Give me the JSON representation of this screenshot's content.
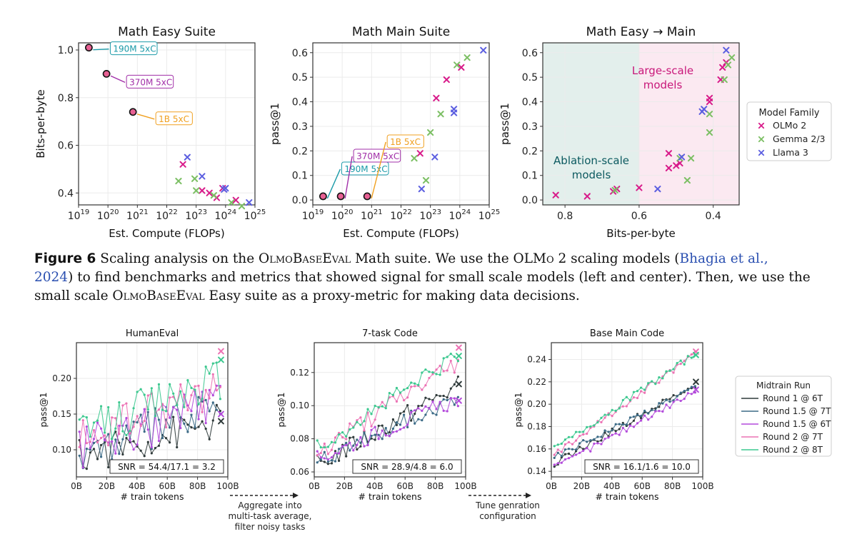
{
  "colors": {
    "olmo": "#d81b8a",
    "gemma": "#7cbf64",
    "llama": "#5b5ee0",
    "ann_190": "#1a9aa8",
    "ann_370": "#a12fa8",
    "ann_1b": "#f0a020",
    "ablation_text": "#0c5a60",
    "large_text": "#c8187a",
    "run_r1_6t": "#2f3a3a",
    "run_r15_7t": "#3b6a86",
    "run_r15_6t": "#b34adb",
    "run_r2_7t": "#ec72b4",
    "run_r2_8t": "#3cc88f"
  },
  "top_legend": {
    "title": "Model Family",
    "items": [
      "OLMo 2",
      "Gemma 2/3",
      "Llama 3"
    ]
  },
  "bottom_legend": {
    "title": "Midtrain Run",
    "items": [
      "Round 1 @ 6T",
      "Round 1.5 @ 7T",
      "Round 1.5 @ 6T",
      "Round 2 @ 7T",
      "Round 2 @ 8T"
    ]
  },
  "caption": {
    "label": "Figure 6",
    "t1": " Scaling analysis on the ",
    "sc1": "OlmoBaseEval",
    "t2": " Math suite. We use the OL",
    "sc2": "Mo",
    "t3": " 2 scaling models (",
    "cite_a": "Bhagia et al.,",
    "cite_b": "2024",
    "t4": ") to find benchmarks and metrics that showed signal for small scale models (left and center). Then, we use the small scale ",
    "sc3": "OlmoBaseEval",
    "t5": " Easy suite as a proxy-metric for making data decisions."
  },
  "arrows": {
    "a1": [
      "Aggregate into",
      "multi-task average,",
      "filter noisy tasks"
    ],
    "a2": [
      "Tune genration",
      "configuration"
    ]
  },
  "chart_data": [
    {
      "id": "math_easy",
      "type": "scatter",
      "title": "Math Easy Suite",
      "xlabel": "Est. Compute (FLOPs)",
      "ylabel": "Bits-per-byte",
      "xscale": "log",
      "xlim_exp": [
        19,
        25
      ],
      "xticks_exp": [
        19,
        20,
        21,
        22,
        23,
        24,
        25
      ],
      "ylim": [
        0.35,
        1.03
      ],
      "yticks": [
        0.4,
        0.6,
        0.8,
        1.0
      ],
      "yticklabels": [
        "0.4",
        "0.6",
        "0.8",
        "1.0"
      ],
      "circles": [
        {
          "x_exp": 19.35,
          "y": 1.01,
          "label": "190M 5xC",
          "color_key": "ann_190"
        },
        {
          "x_exp": 19.95,
          "y": 0.9,
          "label": "370M 5xC",
          "color_key": "ann_370"
        },
        {
          "x_exp": 20.85,
          "y": 0.74,
          "label": "1B 5xC",
          "color_key": "ann_1b"
        }
      ],
      "series": [
        {
          "name": "OLMo 2",
          "color_key": "olmo",
          "points": [
            [
              22.55,
              0.52
            ],
            [
              23.2,
              0.41
            ],
            [
              23.45,
              0.4
            ],
            [
              23.7,
              0.38
            ],
            [
              24.35,
              0.37
            ],
            [
              23.9,
              0.42
            ]
          ]
        },
        {
          "name": "Gemma 2/3",
          "color_key": "gemma",
          "points": [
            [
              22.4,
              0.45
            ],
            [
              22.95,
              0.46
            ],
            [
              23.0,
              0.41
            ],
            [
              23.6,
              0.39
            ],
            [
              24.2,
              0.36
            ],
            [
              24.55,
              0.345
            ]
          ]
        },
        {
          "name": "Llama 3",
          "color_key": "llama",
          "points": [
            [
              22.7,
              0.55
            ],
            [
              23.2,
              0.47
            ],
            [
              24.0,
              0.42
            ],
            [
              24.8,
              0.36
            ],
            [
              23.95,
              0.415
            ]
          ]
        }
      ]
    },
    {
      "id": "math_main",
      "type": "scatter",
      "title": "Math Main Suite",
      "xlabel": "Est. Compute (FLOPs)",
      "ylabel": "pass@1",
      "xscale": "log",
      "xlim_exp": [
        19,
        25
      ],
      "xticks_exp": [
        19,
        20,
        21,
        22,
        23,
        24,
        25
      ],
      "ylim": [
        -0.02,
        0.64
      ],
      "yticks": [
        0.0,
        0.1,
        0.2,
        0.3,
        0.4,
        0.5,
        0.6
      ],
      "yticklabels": [
        "0.0",
        "0.1",
        "0.2",
        "0.3",
        "0.4",
        "0.5",
        "0.6"
      ],
      "circles": [
        {
          "x_exp": 19.35,
          "y": 0.015,
          "label": "190M 5xC",
          "color_key": "ann_190"
        },
        {
          "x_exp": 19.95,
          "y": 0.015,
          "label": "370M 5xC",
          "color_key": "ann_370"
        },
        {
          "x_exp": 20.85,
          "y": 0.015,
          "label": "1B 5xC",
          "color_key": "ann_1b"
        }
      ],
      "series": [
        {
          "name": "OLMo 2",
          "color_key": "olmo",
          "points": [
            [
              22.65,
              0.19
            ],
            [
              23.2,
              0.415
            ],
            [
              23.55,
              0.49
            ],
            [
              24.05,
              0.54
            ]
          ]
        },
        {
          "name": "Gemma 2/3",
          "color_key": "gemma",
          "points": [
            [
              22.45,
              0.17
            ],
            [
              22.85,
              0.08
            ],
            [
              23.0,
              0.275
            ],
            [
              23.35,
              0.35
            ],
            [
              23.9,
              0.55
            ],
            [
              24.25,
              0.58
            ]
          ]
        },
        {
          "name": "Llama 3",
          "color_key": "llama",
          "points": [
            [
              22.7,
              0.045
            ],
            [
              23.15,
              0.175
            ],
            [
              23.8,
              0.37
            ],
            [
              23.8,
              0.355
            ],
            [
              24.8,
              0.61
            ]
          ]
        }
      ]
    },
    {
      "id": "math_easy_main",
      "type": "scatter",
      "title": "Math Easy → Main",
      "xlabel": "Bits-per-byte",
      "ylabel": "pass@1",
      "xlim": [
        0.86,
        0.33
      ],
      "xticks": [
        0.8,
        0.6,
        0.4
      ],
      "xticklabels": [
        "0.8",
        "0.6",
        "0.4"
      ],
      "ylim": [
        -0.02,
        0.64
      ],
      "yticks": [
        0.0,
        0.1,
        0.2,
        0.3,
        0.4,
        0.5,
        0.6
      ],
      "yticklabels": [
        "0.0",
        "0.1",
        "0.2",
        "0.3",
        "0.4",
        "0.5",
        "0.6"
      ],
      "region_split_x": 0.6,
      "ablation_label": [
        "Ablation-scale",
        "models"
      ],
      "large_label": [
        "Large-scale",
        "models"
      ],
      "series": [
        {
          "name": "OLMo 2",
          "color_key": "olmo",
          "points": [
            [
              0.825,
              0.02
            ],
            [
              0.74,
              0.015
            ],
            [
              0.67,
              0.035
            ],
            [
              0.66,
              0.045
            ],
            [
              0.6,
              0.05
            ],
            [
              0.52,
              0.13
            ],
            [
              0.52,
              0.19
            ],
            [
              0.5,
              0.14
            ],
            [
              0.49,
              0.15
            ],
            [
              0.41,
              0.4
            ],
            [
              0.41,
              0.415
            ],
            [
              0.38,
              0.49
            ],
            [
              0.375,
              0.54
            ],
            [
              0.365,
              0.56
            ]
          ]
        },
        {
          "name": "Gemma 2/3",
          "color_key": "gemma",
          "points": [
            [
              0.665,
              0.04
            ],
            [
              0.47,
              0.08
            ],
            [
              0.46,
              0.17
            ],
            [
              0.49,
              0.17
            ],
            [
              0.41,
              0.35
            ],
            [
              0.41,
              0.275
            ],
            [
              0.37,
              0.49
            ],
            [
              0.36,
              0.55
            ],
            [
              0.35,
              0.58
            ]
          ]
        },
        {
          "name": "Llama 3",
          "color_key": "llama",
          "points": [
            [
              0.55,
              0.045
            ],
            [
              0.485,
              0.175
            ],
            [
              0.43,
              0.36
            ],
            [
              0.425,
              0.37
            ],
            [
              0.365,
              0.61
            ]
          ]
        }
      ]
    },
    {
      "id": "humaneval",
      "type": "line",
      "title": "HumanEval",
      "xlabel": "# train tokens",
      "ylabel": "pass@1",
      "xlim": [
        0,
        100
      ],
      "xticks": [
        0,
        20,
        40,
        60,
        80,
        100
      ],
      "xticklabels": [
        "0B",
        "20B",
        "40B",
        "60B",
        "80B",
        "100B"
      ],
      "ylim": [
        0.062,
        0.25
      ],
      "yticks": [
        0.1,
        0.15,
        0.2
      ],
      "yticklabels": [
        "0.10",
        "0.15",
        "0.20"
      ],
      "snr": "SNR = 54.4/17.1 = 3.2",
      "series": [
        {
          "name": "Round 1 @ 6T",
          "color_key": "run_r1_6t",
          "start": 0.09,
          "end": 0.14,
          "amp": 0.025,
          "final_marks": [
            0.14
          ]
        },
        {
          "name": "Round 1.5 @ 7T",
          "color_key": "run_r15_7t",
          "start": 0.095,
          "end": 0.16,
          "amp": 0.03,
          "final_marks": []
        },
        {
          "name": "Round 1.5 @ 6T",
          "color_key": "run_r15_6t",
          "start": 0.1,
          "end": 0.165,
          "amp": 0.03,
          "final_marks": [
            0.15
          ]
        },
        {
          "name": "Round 2 @ 7T",
          "color_key": "run_r2_7t",
          "start": 0.11,
          "end": 0.19,
          "amp": 0.03,
          "final_marks": [
            0.238
          ]
        },
        {
          "name": "Round 2 @ 8T",
          "color_key": "run_r2_8t",
          "start": 0.12,
          "end": 0.2,
          "amp": 0.03,
          "final_marks": [
            0.226
          ]
        }
      ]
    },
    {
      "id": "seven_task_code",
      "type": "line",
      "title": "7-task Code",
      "xlabel": "# train tokens",
      "ylabel": "pass@1",
      "xlim": [
        0,
        100
      ],
      "xticks": [
        0,
        20,
        40,
        60,
        80,
        100
      ],
      "xticklabels": [
        "0B",
        "20B",
        "40B",
        "60B",
        "80B",
        "100B"
      ],
      "ylim": [
        0.057,
        0.138
      ],
      "yticks": [
        0.06,
        0.08,
        0.1,
        0.12
      ],
      "yticklabels": [
        "0.06",
        "0.08",
        "0.10",
        "0.12"
      ],
      "snr": "SNR = 28.9/4.8 = 6.0",
      "series": [
        {
          "name": "Round 1 @ 6T",
          "color_key": "run_r1_6t",
          "start": 0.064,
          "end": 0.112,
          "amp": 0.006,
          "final_marks": [
            0.113
          ]
        },
        {
          "name": "Round 1.5 @ 7T",
          "color_key": "run_r15_7t",
          "start": 0.066,
          "end": 0.105,
          "amp": 0.005,
          "final_marks": []
        },
        {
          "name": "Round 1.5 @ 6T",
          "color_key": "run_r15_6t",
          "start": 0.068,
          "end": 0.104,
          "amp": 0.005,
          "final_marks": [
            0.103
          ]
        },
        {
          "name": "Round 2 @ 7T",
          "color_key": "run_r2_7t",
          "start": 0.071,
          "end": 0.126,
          "amp": 0.006,
          "final_marks": [
            0.135
          ]
        },
        {
          "name": "Round 2 @ 8T",
          "color_key": "run_r2_8t",
          "start": 0.075,
          "end": 0.13,
          "amp": 0.005,
          "final_marks": [
            0.13
          ]
        }
      ]
    },
    {
      "id": "base_main_code",
      "type": "line",
      "title": "Base Main Code",
      "xlabel": "# train tokens",
      "ylabel": "pass@1",
      "xlim": [
        0,
        100
      ],
      "xticks": [
        0,
        20,
        40,
        60,
        80,
        100
      ],
      "xticklabels": [
        "0B",
        "20B",
        "40B",
        "60B",
        "80B",
        "100B"
      ],
      "ylim": [
        0.135,
        0.255
      ],
      "yticks": [
        0.14,
        0.16,
        0.18,
        0.2,
        0.22,
        0.24
      ],
      "yticklabels": [
        "0.14",
        "0.16",
        "0.18",
        "0.20",
        "0.22",
        "0.24"
      ],
      "snr": "SNR = 16.1/1.6 = 10.0",
      "series": [
        {
          "name": "Round 1 @ 6T",
          "color_key": "run_r1_6t",
          "start": 0.147,
          "end": 0.217,
          "amp": 0.003,
          "final_marks": [
            0.22
          ]
        },
        {
          "name": "Round 1.5 @ 7T",
          "color_key": "run_r15_7t",
          "start": 0.152,
          "end": 0.215,
          "amp": 0.003,
          "final_marks": []
        },
        {
          "name": "Round 1.5 @ 6T",
          "color_key": "run_r15_6t",
          "start": 0.143,
          "end": 0.212,
          "amp": 0.003,
          "final_marks": [
            0.213
          ]
        },
        {
          "name": "Round 2 @ 7T",
          "color_key": "run_r2_7t",
          "start": 0.155,
          "end": 0.245,
          "amp": 0.003,
          "final_marks": [
            0.247
          ]
        },
        {
          "name": "Round 2 @ 8T",
          "color_key": "run_r2_8t",
          "start": 0.16,
          "end": 0.245,
          "amp": 0.003,
          "final_marks": [
            0.244
          ]
        }
      ]
    }
  ]
}
